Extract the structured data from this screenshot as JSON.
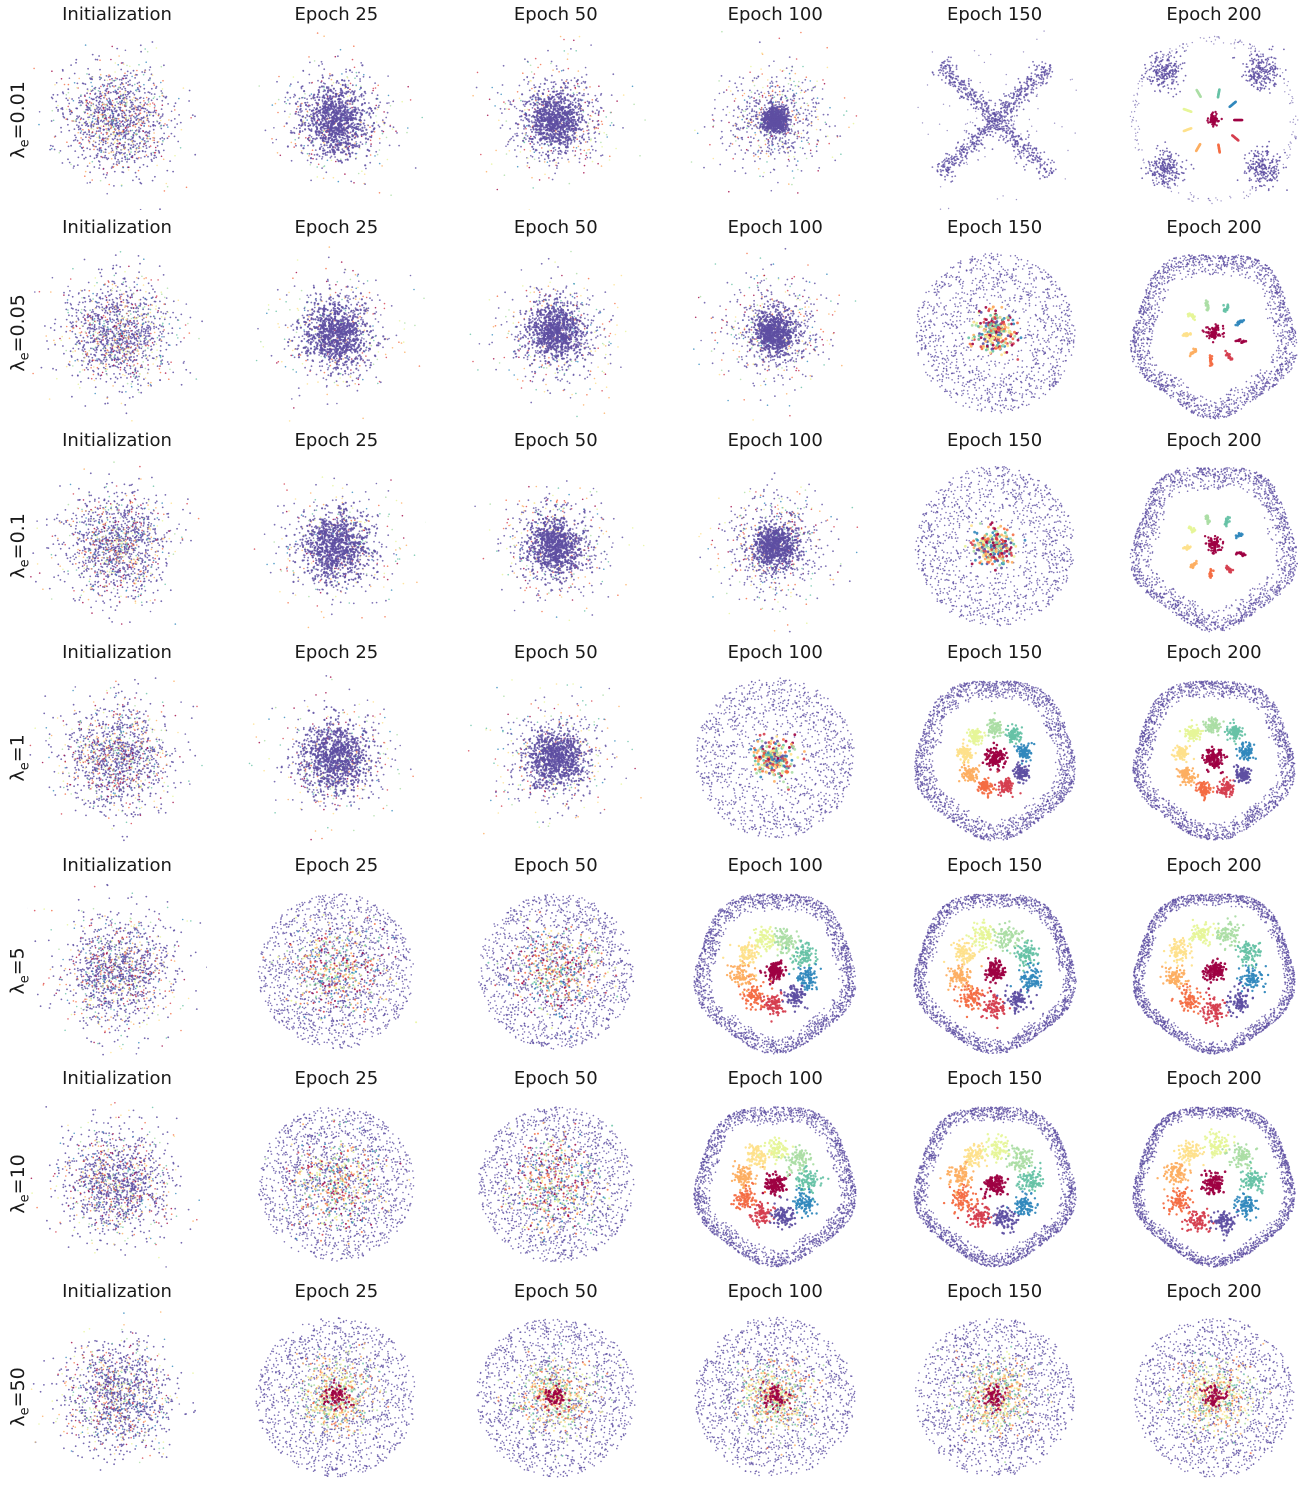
{
  "palette": [
    "#9e0142",
    "#d53e4f",
    "#f46d43",
    "#fdae61",
    "#fee08b",
    "#e6f598",
    "#abdda4",
    "#66c2a5",
    "#3288bd",
    "#5e4fa2"
  ],
  "background_color": "#5e4fa2",
  "rows": [
    {
      "symbol": "λ",
      "subscript": "e",
      "value": "=0.01",
      "panels": [
        {
          "title": "Initialization",
          "pattern": "init"
        },
        {
          "title": "Epoch 25",
          "pattern": "blob"
        },
        {
          "title": "Epoch 50",
          "pattern": "blob"
        },
        {
          "title": "Epoch 100",
          "pattern": "blob"
        },
        {
          "title": "Epoch 150",
          "pattern": "x-shape"
        },
        {
          "title": "Epoch 200",
          "pattern": "corner-clusters"
        }
      ]
    },
    {
      "symbol": "λ",
      "subscript": "e",
      "value": "=0.05",
      "panels": [
        {
          "title": "Initialization",
          "pattern": "init"
        },
        {
          "title": "Epoch 25",
          "pattern": "blob"
        },
        {
          "title": "Epoch 50",
          "pattern": "blob"
        },
        {
          "title": "Epoch 100",
          "pattern": "blob"
        },
        {
          "title": "Epoch 150",
          "pattern": "ring-core"
        },
        {
          "title": "Epoch 200",
          "pattern": "ring-spokes"
        }
      ]
    },
    {
      "symbol": "λ",
      "subscript": "e",
      "value": "=0.1",
      "panels": [
        {
          "title": "Initialization",
          "pattern": "init"
        },
        {
          "title": "Epoch 25",
          "pattern": "blob"
        },
        {
          "title": "Epoch 50",
          "pattern": "blob"
        },
        {
          "title": "Epoch 100",
          "pattern": "blob"
        },
        {
          "title": "Epoch 150",
          "pattern": "ring-core"
        },
        {
          "title": "Epoch 200",
          "pattern": "ring-spokes"
        }
      ]
    },
    {
      "symbol": "λ",
      "subscript": "e",
      "value": "=1",
      "panels": [
        {
          "title": "Initialization",
          "pattern": "init"
        },
        {
          "title": "Epoch 25",
          "pattern": "blob"
        },
        {
          "title": "Epoch 50",
          "pattern": "blob"
        },
        {
          "title": "Epoch 100",
          "pattern": "ring-core"
        },
        {
          "title": "Epoch 150",
          "pattern": "ring-clusters"
        },
        {
          "title": "Epoch 200",
          "pattern": "ring-clusters"
        }
      ]
    },
    {
      "symbol": "λ",
      "subscript": "e",
      "value": "=5",
      "panels": [
        {
          "title": "Initialization",
          "pattern": "init"
        },
        {
          "title": "Epoch 25",
          "pattern": "diffuse"
        },
        {
          "title": "Epoch 50",
          "pattern": "diffuse"
        },
        {
          "title": "Epoch 100",
          "pattern": "ring-clusters"
        },
        {
          "title": "Epoch 150",
          "pattern": "ring-clusters"
        },
        {
          "title": "Epoch 200",
          "pattern": "ring-clusters"
        }
      ]
    },
    {
      "symbol": "λ",
      "subscript": "e",
      "value": "=10",
      "panels": [
        {
          "title": "Initialization",
          "pattern": "init"
        },
        {
          "title": "Epoch 25",
          "pattern": "diffuse"
        },
        {
          "title": "Epoch 50",
          "pattern": "diffuse"
        },
        {
          "title": "Epoch 100",
          "pattern": "ring-clusters"
        },
        {
          "title": "Epoch 150",
          "pattern": "ring-clusters"
        },
        {
          "title": "Epoch 200",
          "pattern": "ring-clusters"
        }
      ]
    },
    {
      "symbol": "λ",
      "subscript": "e",
      "value": "=50",
      "panels": [
        {
          "title": "Initialization",
          "pattern": "init"
        },
        {
          "title": "Epoch 25",
          "pattern": "diffuse-mixed"
        },
        {
          "title": "Epoch 50",
          "pattern": "diffuse-mixed"
        },
        {
          "title": "Epoch 100",
          "pattern": "diffuse-mixed"
        },
        {
          "title": "Epoch 150",
          "pattern": "diffuse-mixed"
        },
        {
          "title": "Epoch 200",
          "pattern": "diffuse-mixed"
        }
      ]
    }
  ],
  "chart_data": {
    "type": "scatter",
    "grid": false,
    "axes": "off",
    "legend": "none"
  }
}
